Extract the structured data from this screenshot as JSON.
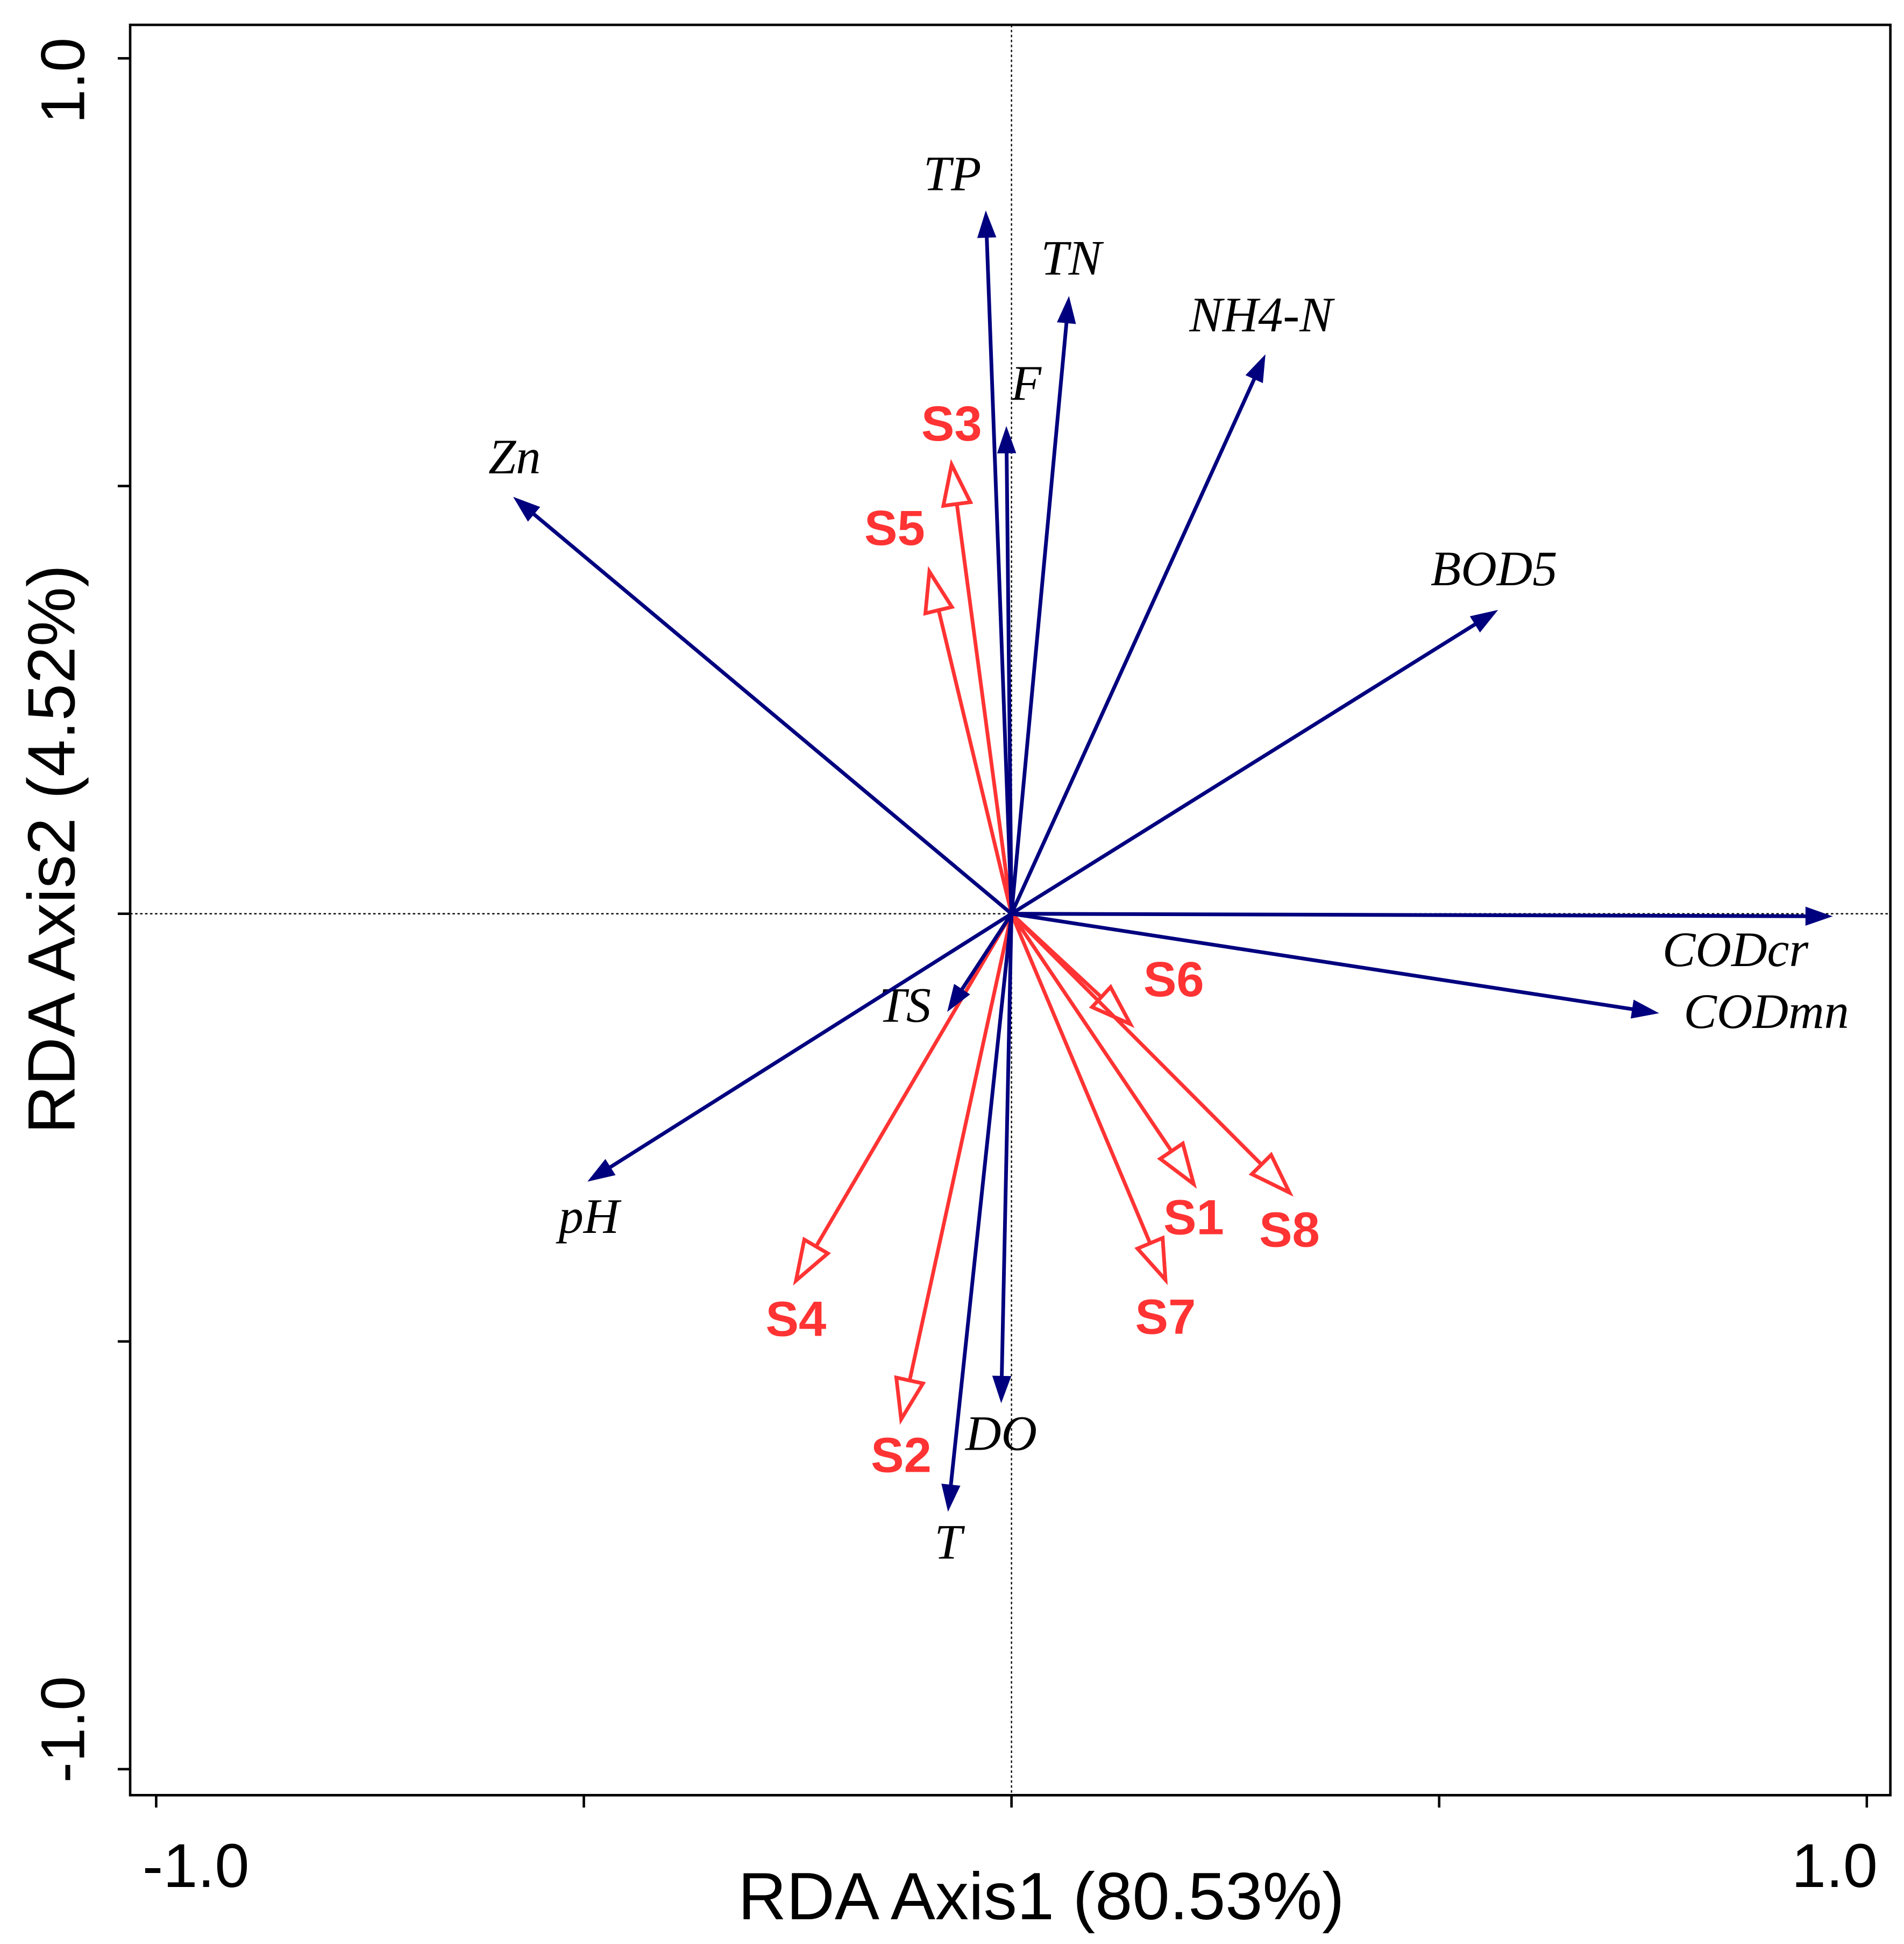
{
  "chart_data": {
    "type": "biplot",
    "title": "",
    "xlabel": "RDA  Axis1 (80.53%)",
    "ylabel": "RDA  Axis2 (4.52%)",
    "xlim": [
      -1.0,
      1.0
    ],
    "ylim": [
      -1.0,
      1.0
    ],
    "x_tick_labels": [
      "-1.0",
      "1.0"
    ],
    "y_tick_labels": [
      "1.0",
      "-1.0"
    ],
    "grid": false,
    "colors": {
      "environment": "#00007f",
      "sites": "#ff3333"
    },
    "environment_vectors": [
      {
        "name": "TP",
        "x": -0.03,
        "y": 0.82
      },
      {
        "name": "TN",
        "x": 0.067,
        "y": 0.72
      },
      {
        "name": "NH4-N",
        "x": 0.296,
        "y": 0.652
      },
      {
        "name": "F",
        "x": -0.006,
        "y": 0.568
      },
      {
        "name": "Zn",
        "x": -0.581,
        "y": 0.486
      },
      {
        "name": "BOD5",
        "x": 0.567,
        "y": 0.354
      },
      {
        "name": "CODcr",
        "x": 0.958,
        "y": -0.003
      },
      {
        "name": "CODmn",
        "x": 0.755,
        "y": -0.116
      },
      {
        "name": "TS",
        "x": -0.074,
        "y": -0.113
      },
      {
        "name": "pH",
        "x": -0.494,
        "y": -0.312
      },
      {
        "name": "DO",
        "x": -0.012,
        "y": -0.57
      },
      {
        "name": "T",
        "x": -0.074,
        "y": -0.697
      }
    ],
    "site_vectors": [
      {
        "name": "S3",
        "x": -0.07,
        "y": 0.525
      },
      {
        "name": "S5",
        "x": -0.096,
        "y": 0.4
      },
      {
        "name": "S6",
        "x": 0.139,
        "y": -0.129
      },
      {
        "name": "S1",
        "x": 0.213,
        "y": -0.316
      },
      {
        "name": "S8",
        "x": 0.325,
        "y": -0.326
      },
      {
        "name": "S7",
        "x": 0.18,
        "y": -0.428
      },
      {
        "name": "S4",
        "x": -0.252,
        "y": -0.429
      },
      {
        "name": "S2",
        "x": -0.129,
        "y": -0.591
      }
    ]
  }
}
